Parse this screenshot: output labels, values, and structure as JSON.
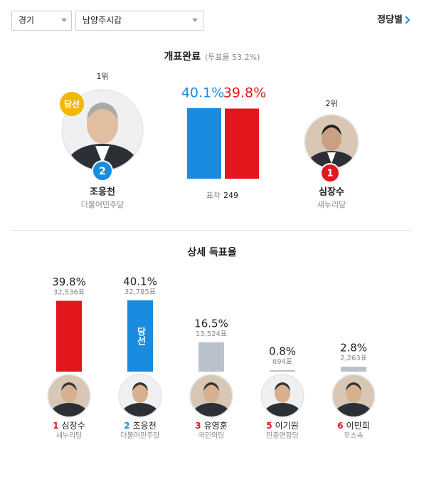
{
  "filters": {
    "region": "경기",
    "district": "남양주시갑",
    "party_link": "정당별"
  },
  "summary": {
    "status": "개표완료",
    "turnout": "(투표율 53.2%)",
    "candidates": [
      {
        "rank": "1위",
        "badge": "당선",
        "number": "2",
        "name": "조응천",
        "party": "더불어민주당",
        "color": "#1a8ce0"
      },
      {
        "rank": "2위",
        "number": "1",
        "name": "심장수",
        "party": "새누리당",
        "color": "#e3161e"
      }
    ],
    "margin_label": "표차",
    "margin": 249
  },
  "chart_data": [
    {
      "type": "bar",
      "values": [
        40.1,
        39.8
      ],
      "value_labels": [
        "40.1%",
        "39.8%"
      ],
      "colors": [
        "#1a8ce0",
        "#e3161e"
      ],
      "ylim": [
        0,
        40
      ]
    },
    {
      "type": "bar",
      "title": "상세 득표율",
      "numbers": [
        "1",
        "2",
        "3",
        "5",
        "6"
      ],
      "categories": [
        "심장수",
        "조응천",
        "유영훈",
        "이기원",
        "이민희"
      ],
      "parties": [
        "새누리당",
        "더불어민주당",
        "국민의당",
        "민중연합당",
        "무소속"
      ],
      "values": [
        39.8,
        40.1,
        16.5,
        0.8,
        2.8
      ],
      "value_labels": [
        "39.8%",
        "40.1%",
        "16.5%",
        "0.8%",
        "2.8%"
      ],
      "votes": [
        32536,
        32785,
        13524,
        694,
        2263
      ],
      "vote_labels": [
        "32,536표",
        "32,785표",
        "13,524표",
        "694표",
        "2,263표"
      ],
      "badges": [
        null,
        "당선",
        null,
        null,
        null
      ],
      "colors": [
        "#e3161e",
        "#1a8ce0",
        "#b9c2cc",
        "#b9c2cc",
        "#b9c2cc"
      ],
      "number_colors": [
        "#e3161e",
        "#1a8ce0",
        "#e3161e",
        "#e3161e",
        "#e3161e"
      ],
      "ylim": [
        0,
        40
      ]
    }
  ]
}
